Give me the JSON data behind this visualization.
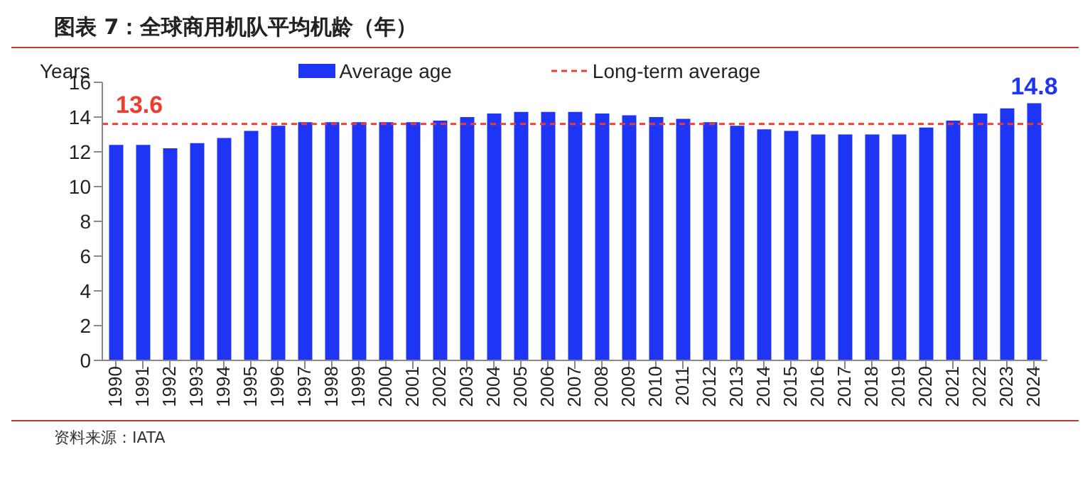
{
  "chart_data": {
    "type": "bar",
    "title": "图表 7：全球商用机队平均机龄（年）",
    "ylabel": "Years",
    "categories": [
      "1990",
      "1991",
      "1992",
      "1993",
      "1994",
      "1995",
      "1996",
      "1997",
      "1998",
      "1999",
      "2000",
      "2001",
      "2002",
      "2003",
      "2004",
      "2005",
      "2006",
      "2007",
      "2008",
      "2009",
      "2010",
      "2011",
      "2012",
      "2013",
      "2014",
      "2015",
      "2016",
      "2017",
      "2018",
      "2019",
      "2020",
      "2021",
      "2022",
      "2023",
      "2024"
    ],
    "series": [
      {
        "name": "Average age",
        "color": "#1f35f5",
        "values": [
          12.4,
          12.4,
          12.2,
          12.5,
          12.8,
          13.2,
          13.5,
          13.7,
          13.7,
          13.7,
          13.7,
          13.7,
          13.8,
          14.0,
          14.2,
          14.3,
          14.3,
          14.3,
          14.2,
          14.1,
          14.0,
          13.9,
          13.7,
          13.5,
          13.3,
          13.2,
          13.0,
          13.0,
          13.0,
          13.0,
          13.4,
          13.8,
          14.2,
          14.5,
          14.8
        ],
        "value_labels": [
          null,
          null,
          null,
          null,
          null,
          null,
          null,
          null,
          null,
          null,
          null,
          null,
          null,
          null,
          null,
          null,
          null,
          null,
          null,
          null,
          null,
          null,
          null,
          null,
          null,
          null,
          null,
          null,
          null,
          null,
          null,
          null,
          null,
          null,
          "14.8"
        ]
      }
    ],
    "ylim": [
      0,
      16
    ],
    "yticks": [
      0,
      2,
      4,
      6,
      8,
      10,
      12,
      14,
      16
    ],
    "grid": false,
    "legend": "top",
    "ref_lines": [
      {
        "axis": "y",
        "value": 13.6,
        "label": "Long-term average",
        "color": "#f03c2e",
        "line_style": "dashed"
      }
    ],
    "annotations": [
      {
        "text": "13.6",
        "x": "1990",
        "y": 13.6
      },
      "资料来源：IATA"
    ]
  }
}
